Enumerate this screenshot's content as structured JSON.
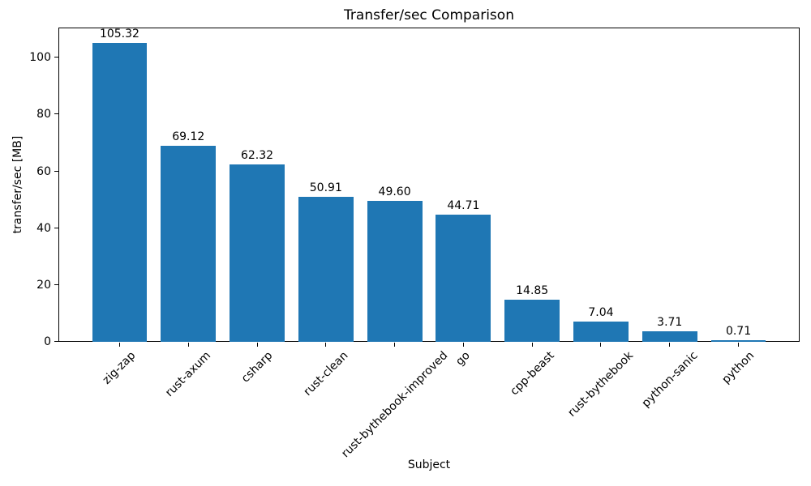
{
  "chart_data": {
    "type": "bar",
    "title": "Transfer/sec Comparison",
    "xlabel": "Subject",
    "ylabel": "transfer/sec [MB]",
    "categories": [
      "zig-zap",
      "rust-axum",
      "csharp",
      "rust-clean",
      "rust-bythebook-improved",
      "go",
      "cpp-beast",
      "rust-bythebook",
      "python-sanic",
      "python"
    ],
    "values": [
      105.32,
      69.12,
      62.32,
      50.91,
      49.6,
      44.71,
      14.85,
      7.04,
      3.71,
      0.71
    ],
    "value_labels": [
      "105.32",
      "69.12",
      "62.32",
      "50.91",
      "49.60",
      "44.71",
      "14.85",
      "7.04",
      "3.71",
      "0.71"
    ],
    "yticks": [
      0,
      20,
      40,
      60,
      80,
      100
    ],
    "ytick_labels": [
      "0",
      "20",
      "40",
      "60",
      "80",
      "100"
    ],
    "ylim": [
      0,
      110.6
    ],
    "xtick_label_rotation_deg": 45,
    "grid": false,
    "legend": null,
    "bar_color": "#1f77b4",
    "axis_color": "#000000",
    "text_color": "#000000",
    "background_color": "#ffffff"
  }
}
